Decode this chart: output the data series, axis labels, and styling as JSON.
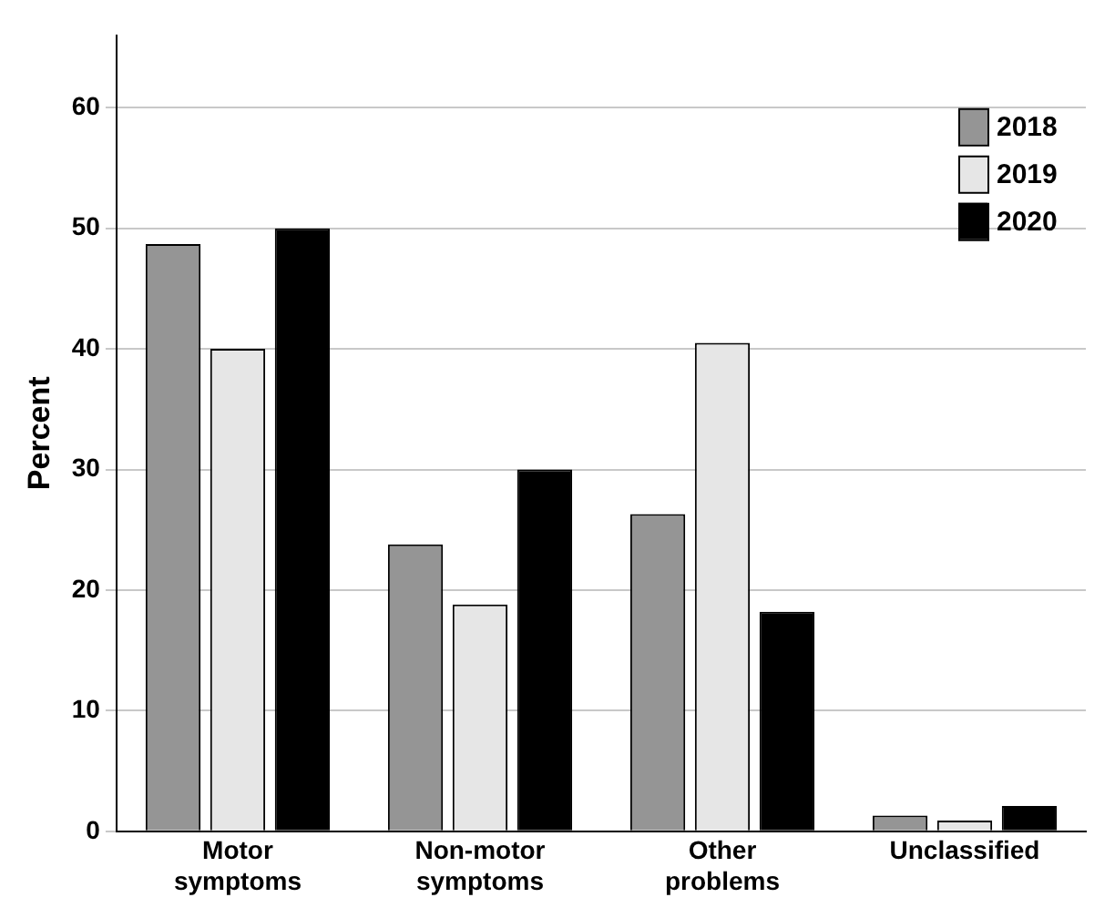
{
  "chart_data": {
    "type": "bar",
    "ylabel": "Percent",
    "categories": [
      "Motor symptoms",
      "Non-motor symptoms",
      "Other problems",
      "Unclassified"
    ],
    "series": [
      {
        "name": "2018",
        "color": "#959595",
        "values": [
          48.7,
          23.8,
          26.3,
          1.3
        ]
      },
      {
        "name": "2019",
        "color": "#e6e6e6",
        "values": [
          40,
          18.8,
          40.5,
          0.9
        ]
      },
      {
        "name": "2020",
        "color": "#000000",
        "values": [
          50,
          30,
          18.2,
          2.1
        ]
      }
    ],
    "ylim": [
      0,
      66
    ],
    "yticks": [
      0,
      10,
      20,
      30,
      40,
      50,
      60
    ],
    "grid": "y",
    "legend": "top right"
  }
}
